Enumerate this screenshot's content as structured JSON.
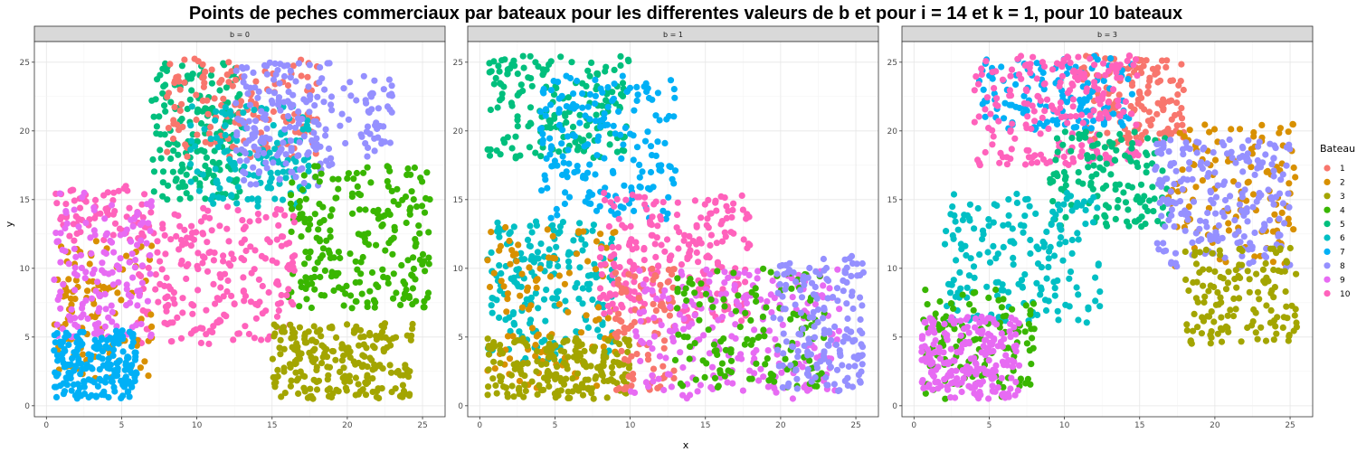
{
  "chart_data": {
    "type": "scatter",
    "title": "Points de peches commerciaux par bateaux pour les differentes valeurs de b et pour i = 14 et k = 1, pour 10 bateaux",
    "xlabel": "x",
    "ylabel": "y",
    "xlim": [
      -0.8,
      26.5
    ],
    "ylim": [
      -0.8,
      26.5
    ],
    "xticks": [
      0,
      5,
      10,
      15,
      20,
      25
    ],
    "yticks": [
      0,
      5,
      10,
      15,
      20,
      25
    ],
    "grid": true,
    "legend": {
      "title": "Bateau",
      "position": "right",
      "entries": [
        "1",
        "2",
        "3",
        "4",
        "5",
        "6",
        "7",
        "8",
        "9",
        "10"
      ]
    },
    "colors": {
      "1": "#F8766D",
      "2": "#D89000",
      "3": "#A3A500",
      "4": "#39B600",
      "5": "#00BF7D",
      "6": "#00BFC4",
      "7": "#00B0F6",
      "8": "#9590FF",
      "9": "#E76BF3",
      "10": "#FF62BC"
    },
    "panels": [
      {
        "strip": "b = 0",
        "regions": [
          {
            "boat": "5",
            "x": [
              7,
              13
            ],
            "y": [
              15,
              25
            ],
            "n": 170
          },
          {
            "boat": "1",
            "x": [
              8,
              18
            ],
            "y": [
              18,
              25.3
            ],
            "n": 140
          },
          {
            "boat": "6",
            "x": [
              9.5,
              17.5
            ],
            "y": [
              14.5,
              22
            ],
            "n": 130
          },
          {
            "boat": "8",
            "x": [
              12.5,
              19
            ],
            "y": [
              16,
              25
            ],
            "n": 170
          },
          {
            "boat": "8",
            "x": [
              19.5,
              23
            ],
            "y": [
              18,
              24
            ],
            "n": 50
          },
          {
            "boat": "4",
            "x": [
              16,
              25.5
            ],
            "y": [
              7,
              17.5
            ],
            "n": 230
          },
          {
            "boat": "10",
            "x": [
              6,
              16.5
            ],
            "y": [
              4.5,
              14.5
            ],
            "n": 230
          },
          {
            "boat": "3",
            "x": [
              15,
              24.5
            ],
            "y": [
              0.5,
              6
            ],
            "n": 230
          },
          {
            "boat": "2",
            "x": [
              0.5,
              7
            ],
            "y": [
              2,
              12
            ],
            "n": 110
          },
          {
            "boat": "10",
            "x": [
              0.5,
              7
            ],
            "y": [
              12,
              16
            ],
            "n": 70
          },
          {
            "boat": "9",
            "x": [
              0.5,
              7
            ],
            "y": [
              5,
              15.5
            ],
            "n": 150
          },
          {
            "boat": "7",
            "x": [
              0.5,
              6
            ],
            "y": [
              0.5,
              5.5
            ],
            "n": 200
          }
        ]
      },
      {
        "strip": "b = 1",
        "regions": [
          {
            "boat": "5",
            "x": [
              0.5,
              10
            ],
            "y": [
              18,
              25.5
            ],
            "n": 180
          },
          {
            "boat": "7",
            "x": [
              4,
              13
            ],
            "y": [
              13.5,
              24
            ],
            "n": 190
          },
          {
            "boat": "6",
            "x": [
              0.5,
              9
            ],
            "y": [
              3,
              13.5
            ],
            "n": 200
          },
          {
            "boat": "2",
            "x": [
              0.5,
              9
            ],
            "y": [
              1,
              13
            ],
            "n": 110
          },
          {
            "boat": "3",
            "x": [
              0.5,
              10
            ],
            "y": [
              0.5,
              5
            ],
            "n": 200
          },
          {
            "boat": "10",
            "x": [
              8,
              18
            ],
            "y": [
              6,
              15.5
            ],
            "n": 230
          },
          {
            "boat": "1",
            "x": [
              9,
              13
            ],
            "y": [
              1,
              10
            ],
            "n": 90
          },
          {
            "boat": "9",
            "x": [
              10,
              24
            ],
            "y": [
              0.5,
              10
            ],
            "n": 230
          },
          {
            "boat": "4",
            "x": [
              13,
              23
            ],
            "y": [
              1,
              10
            ],
            "n": 130
          },
          {
            "boat": "8",
            "x": [
              19.5,
              25.5
            ],
            "y": [
              1,
              11
            ],
            "n": 170
          }
        ]
      },
      {
        "strip": "b = 3",
        "regions": [
          {
            "boat": "1",
            "x": [
              11,
              18
            ],
            "y": [
              19,
              25.5
            ],
            "n": 150
          },
          {
            "boat": "7",
            "x": [
              4,
              14.5
            ],
            "y": [
              20,
              25.5
            ],
            "n": 140
          },
          {
            "boat": "10",
            "x": [
              4,
              15
            ],
            "y": [
              17.5,
              25.5
            ],
            "n": 220
          },
          {
            "boat": "5",
            "x": [
              9,
              17
            ],
            "y": [
              13,
              20
            ],
            "n": 130
          },
          {
            "boat": "6",
            "x": [
              2,
              12.5
            ],
            "y": [
              6,
              15.5
            ],
            "n": 190
          },
          {
            "boat": "2",
            "x": [
              16.5,
              25.5
            ],
            "y": [
              10,
              20.5
            ],
            "n": 120
          },
          {
            "boat": "8",
            "x": [
              16,
              25
            ],
            "y": [
              10,
              19.5
            ],
            "n": 220
          },
          {
            "boat": "3",
            "x": [
              18,
              25.5
            ],
            "y": [
              4.5,
              11.5
            ],
            "n": 140
          },
          {
            "boat": "4",
            "x": [
              0.5,
              8
            ],
            "y": [
              0.5,
              8.5
            ],
            "n": 120
          },
          {
            "boat": "9",
            "x": [
              0.5,
              7
            ],
            "y": [
              0.5,
              6.5
            ],
            "n": 230
          }
        ]
      }
    ]
  }
}
